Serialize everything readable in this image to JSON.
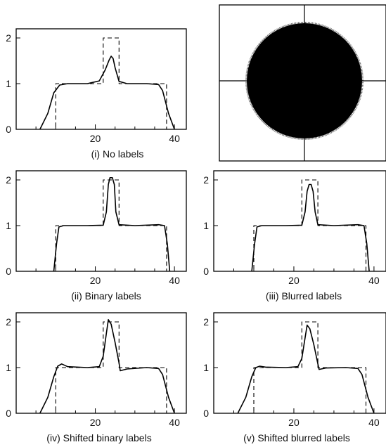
{
  "figure": {
    "captions": {
      "i": "(i) No labels",
      "ii": "(ii) Binary labels",
      "iii": "(iii) Blurred labels",
      "iv": "(iv) Shifted binary labels",
      "v": "(v) Shifted blurred labels"
    },
    "image_panel": {
      "shape": "filled-circle",
      "circle_color": "#000000",
      "crosshair_color": "#000000",
      "background": "#ffffff"
    }
  },
  "chart_data": [
    {
      "id": "i",
      "type": "line",
      "title": "(i) No labels",
      "xlim": [
        0,
        43
      ],
      "ylim": [
        0,
        2.2
      ],
      "x_ticks": [
        20,
        40
      ],
      "y_ticks": [
        0,
        1,
        2
      ],
      "series": [
        {
          "style": "dashed",
          "x": [
            0,
            10,
            10,
            22,
            22,
            26,
            26,
            38,
            38,
            43
          ],
          "y": [
            0,
            0,
            1,
            1,
            2,
            2,
            1,
            1,
            0,
            0
          ]
        },
        {
          "style": "solid",
          "x": [
            6,
            8,
            9.5,
            11,
            13,
            18,
            21,
            22.5,
            23.5,
            24,
            24.5,
            25,
            26,
            28,
            33,
            36,
            37,
            38.5,
            40
          ],
          "y": [
            0,
            0.35,
            0.8,
            0.97,
            1,
            1,
            1.06,
            1.3,
            1.52,
            1.6,
            1.55,
            1.35,
            1.05,
            1,
            1,
            0.98,
            0.85,
            0.35,
            0
          ]
        }
      ]
    },
    {
      "id": "ii",
      "type": "line",
      "title": "(ii) Binary labels",
      "xlim": [
        0,
        43
      ],
      "ylim": [
        0,
        2.2
      ],
      "x_ticks": [
        20,
        40
      ],
      "y_ticks": [
        0,
        1,
        2
      ],
      "series": [
        {
          "style": "dashed",
          "x": [
            0,
            10,
            10,
            22,
            22,
            26,
            26,
            38,
            38,
            43
          ],
          "y": [
            0,
            0,
            1,
            1,
            2,
            2,
            1,
            1,
            0,
            0
          ]
        },
        {
          "style": "solid",
          "x": [
            9.5,
            10.2,
            10.8,
            12,
            18,
            22,
            22.8,
            23.3,
            23.7,
            24.3,
            24.8,
            25.2,
            26,
            30,
            36,
            37.5,
            38.2,
            38.8
          ],
          "y": [
            0,
            0.6,
            0.97,
            1,
            1,
            1.01,
            1.3,
            1.9,
            2.05,
            2.05,
            1.9,
            1.3,
            1.02,
            1,
            1.02,
            1,
            0.6,
            0
          ]
        }
      ]
    },
    {
      "id": "iii",
      "type": "line",
      "title": "(iii) Blurred labels",
      "xlim": [
        0,
        43
      ],
      "ylim": [
        0,
        2.2
      ],
      "x_ticks": [
        20,
        40
      ],
      "y_ticks": [
        0,
        1,
        2
      ],
      "series": [
        {
          "style": "dashed",
          "x": [
            0,
            10,
            10,
            22,
            22,
            26,
            26,
            38,
            38,
            43
          ],
          "y": [
            0,
            0,
            1,
            1,
            2,
            2,
            1,
            1,
            0,
            0
          ]
        },
        {
          "style": "solid",
          "x": [
            9.5,
            10.2,
            10.8,
            12,
            18,
            22,
            22.8,
            23.3,
            23.8,
            24.3,
            24.8,
            25.3,
            26,
            30,
            36,
            37.5,
            38.2,
            38.8
          ],
          "y": [
            0,
            0.6,
            0.97,
            1,
            1,
            1.01,
            1.3,
            1.75,
            1.9,
            1.9,
            1.75,
            1.3,
            1.02,
            1,
            1.02,
            1,
            0.6,
            0
          ]
        }
      ]
    },
    {
      "id": "iv",
      "type": "line",
      "title": "(iv) Shifted binary labels",
      "xlim": [
        0,
        43
      ],
      "ylim": [
        0,
        2.2
      ],
      "x_ticks": [
        20,
        40
      ],
      "y_ticks": [
        0,
        1,
        2
      ],
      "series": [
        {
          "style": "dashed",
          "x": [
            0,
            10,
            10,
            22,
            22,
            26,
            26,
            38,
            38,
            43
          ],
          "y": [
            0,
            0,
            1,
            1,
            2,
            2,
            1,
            1,
            0,
            0
          ]
        },
        {
          "style": "solid",
          "x": [
            6,
            8,
            9.5,
            10.5,
            11.5,
            13,
            18,
            21,
            22,
            22.8,
            23.3,
            24,
            25,
            26,
            26.3,
            28,
            33,
            36,
            37,
            38.5,
            40
          ],
          "y": [
            0,
            0.35,
            0.8,
            1.03,
            1.08,
            1.02,
            1,
            1.02,
            1.25,
            1.75,
            2.05,
            1.95,
            1.55,
            1.1,
            0.93,
            0.97,
            1,
            0.98,
            0.85,
            0.35,
            0
          ]
        }
      ]
    },
    {
      "id": "v",
      "type": "line",
      "title": "(v) Shifted blurred labels",
      "xlim": [
        0,
        43
      ],
      "ylim": [
        0,
        2.2
      ],
      "x_ticks": [
        20,
        40
      ],
      "y_ticks": [
        0,
        1,
        2
      ],
      "series": [
        {
          "style": "dashed",
          "x": [
            0,
            10,
            10,
            22,
            22,
            26,
            26,
            38,
            38,
            43
          ],
          "y": [
            0,
            0,
            1,
            1,
            2,
            2,
            1,
            1,
            0,
            0
          ]
        },
        {
          "style": "solid",
          "x": [
            6,
            8,
            9.5,
            10.5,
            11.5,
            13,
            18,
            21,
            22,
            22.8,
            23.3,
            24,
            25,
            26,
            26.3,
            28,
            33,
            36,
            37,
            38.5,
            40
          ],
          "y": [
            0,
            0.35,
            0.8,
            1.0,
            1.03,
            1.01,
            1,
            1.02,
            1.2,
            1.65,
            1.93,
            1.85,
            1.5,
            1.08,
            0.96,
            0.99,
            1,
            0.98,
            0.85,
            0.35,
            0
          ]
        }
      ]
    }
  ]
}
